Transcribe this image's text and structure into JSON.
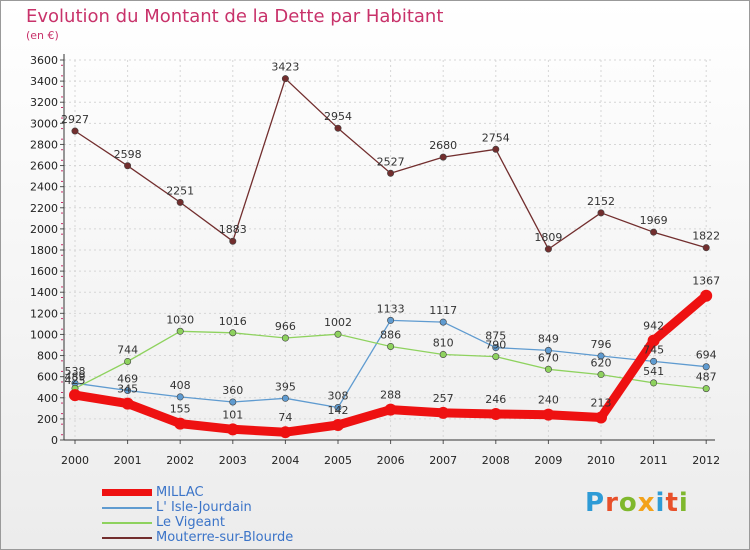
{
  "title": "Evolution du Montant de la Dette par Habitant",
  "unit_label": "(en €)",
  "brand": {
    "letters": [
      "P",
      "r",
      "o",
      "x",
      "i",
      "t",
      "i"
    ],
    "colors": [
      "#2e9bd6",
      "#e8502a",
      "#7fb82d",
      "#f3a21b",
      "#2e9bd6",
      "#e8502a",
      "#7fb82d"
    ]
  },
  "chart_data": {
    "type": "line",
    "x": [
      "2000",
      "2001",
      "2002",
      "2003",
      "2004",
      "2005",
      "2006",
      "2007",
      "2008",
      "2009",
      "2010",
      "2011",
      "2012"
    ],
    "ylim": [
      0,
      3600
    ],
    "yticks": [
      0,
      200,
      400,
      600,
      800,
      1000,
      1200,
      1400,
      1600,
      1800,
      2000,
      2200,
      2400,
      2600,
      2800,
      3000,
      3200,
      3400,
      3600
    ],
    "grid": true,
    "legend_position": "bottom-left",
    "series": [
      {
        "name": "MILLAC",
        "color": "#ee1111",
        "values": [
          425,
          345,
          155,
          101,
          74,
          142,
          288,
          257,
          246,
          240,
          213,
          942,
          1367
        ],
        "labels": [
          "425",
          "345",
          "155",
          "101",
          "74",
          "142",
          "288",
          "257",
          "246",
          "240",
          "213",
          "942",
          "1367"
        ]
      },
      {
        "name": "L' Isle-Jourdain",
        "color": "#5f9bd0",
        "values": [
          538,
          469,
          408,
          360,
          395,
          308,
          1133,
          1117,
          875,
          849,
          796,
          745,
          694
        ],
        "labels": [
          "538",
          "469",
          "408",
          "360",
          "395",
          "308",
          "1133",
          "1117",
          "875",
          "849",
          "796",
          "745",
          "694"
        ]
      },
      {
        "name": "Le Vigeant",
        "color": "#8ed25e",
        "values": [
          489,
          744,
          1030,
          1016,
          966,
          1002,
          886,
          810,
          790,
          670,
          620,
          541,
          487
        ],
        "labels": [
          "489",
          "744",
          "1030",
          "1016",
          "966",
          "1002",
          "886",
          "810",
          "790",
          "670",
          "620",
          "541",
          "487"
        ]
      },
      {
        "name": "Mouterre-sur-Blourde",
        "color": "#722e2e",
        "values": [
          2927,
          2598,
          2251,
          1883,
          3423,
          2954,
          2527,
          2680,
          2754,
          1809,
          2152,
          1969,
          1822
        ],
        "labels": [
          "2927",
          "2598",
          "2251",
          "1883",
          "3423",
          "2954",
          "2527",
          "2680",
          "2754",
          "1809",
          "2152",
          "1969",
          "1822"
        ]
      }
    ]
  }
}
